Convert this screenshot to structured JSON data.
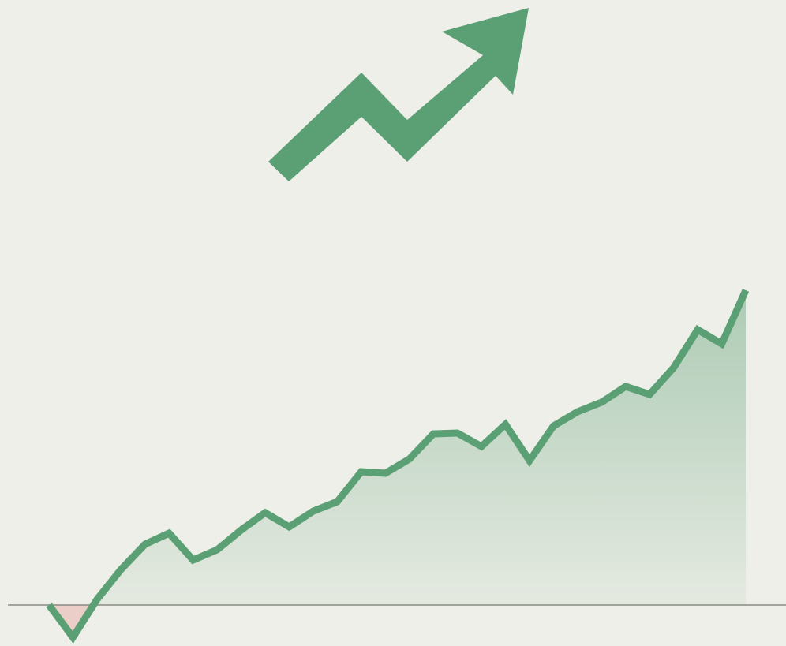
{
  "chart_data": {
    "type": "line",
    "values": [
      0,
      -4.1,
      0.7,
      4.5,
      7.7,
      9.1,
      5.7,
      7,
      9.5,
      11.7,
      9.9,
      11.9,
      13.1,
      16.9,
      16.7,
      18.5,
      21.7,
      21.8,
      20.1,
      22.9,
      18.3,
      22.7,
      24.5,
      25.7,
      27.7,
      26.7,
      30.1,
      34.9,
      33.1,
      39.9
    ],
    "color": "#5b9f74",
    "ylim": [
      -5,
      40
    ]
  }
}
